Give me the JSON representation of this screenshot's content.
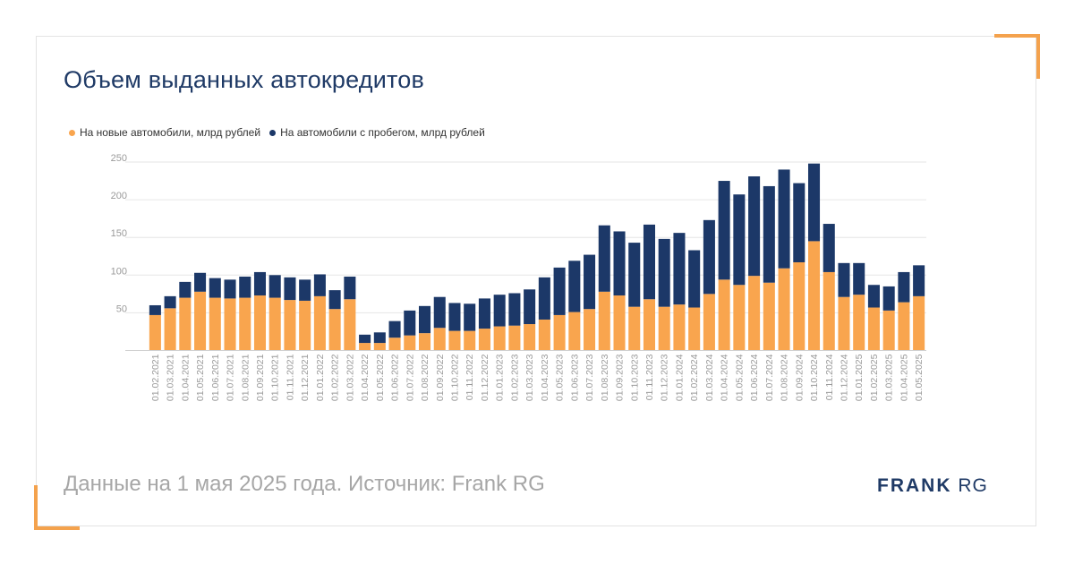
{
  "title": "Объем выданных автокредитов",
  "footer": "Данные на 1 мая 2025 года. Источник: Frank RG",
  "logo": {
    "bold": "FRANK",
    "light": "RG"
  },
  "colors": {
    "new": "#f9a54e",
    "used": "#1c3868",
    "grid": "#e6e6e6",
    "tick": "#9a9a9a",
    "accent": "#f4a24d"
  },
  "chart_data": {
    "type": "bar",
    "stacked": true,
    "title": "Объем выданных автокредитов",
    "ylim": [
      0,
      250
    ],
    "yticks": [
      50,
      100,
      150,
      200,
      250
    ],
    "grid": true,
    "legend_position": "top-left",
    "categories": [
      "01.02.2021",
      "01.03.2021",
      "01.04.2021",
      "01.05.2021",
      "01.06.2021",
      "01.07.2021",
      "01.08.2021",
      "01.09.2021",
      "01.10.2021",
      "01.11.2021",
      "01.12.2021",
      "01.01.2022",
      "01.02.2022",
      "01.03.2022",
      "01.04.2022",
      "01.05.2022",
      "01.06.2022",
      "01.07.2022",
      "01.08.2022",
      "01.09.2022",
      "01.10.2022",
      "01.11.2022",
      "01.12.2022",
      "01.01.2023",
      "01.02.2023",
      "01.03.2023",
      "01.04.2023",
      "01.05.2023",
      "01.06.2023",
      "01.07.2023",
      "01.08.2023",
      "01.09.2023",
      "01.10.2023",
      "01.11.2023",
      "01.12.2023",
      "01.01.2024",
      "01.02.2024",
      "01.03.2024",
      "01.04.2024",
      "01.05.2024",
      "01.06.2024",
      "01.07.2024",
      "01.08.2024",
      "01.09.2024",
      "01.10.2024",
      "01.11.2024",
      "01.12.2024",
      "01.01.2025",
      "01.02.2025",
      "01.03.2025",
      "01.04.2025",
      "01.05.2025"
    ],
    "series": [
      {
        "name": "На новые автомобили, млрд рублей",
        "color": "#f9a54e",
        "values": [
          47,
          56,
          70,
          78,
          70,
          69,
          70,
          73,
          70,
          67,
          66,
          72,
          55,
          68,
          10,
          10,
          17,
          20,
          23,
          30,
          26,
          26,
          29,
          32,
          33,
          35,
          41,
          47,
          51,
          55,
          78,
          73,
          58,
          68,
          58,
          61,
          57,
          75,
          94,
          87,
          99,
          90,
          109,
          117,
          145,
          104,
          71,
          74,
          57,
          53,
          64,
          72
        ]
      },
      {
        "name": "На автомобили с пробегом, млрд рублей",
        "color": "#1c3868",
        "values": [
          13,
          16,
          21,
          25,
          26,
          25,
          28,
          31,
          30,
          30,
          28,
          29,
          25,
          30,
          11,
          14,
          22,
          33,
          36,
          41,
          37,
          36,
          40,
          42,
          43,
          46,
          56,
          63,
          68,
          72,
          88,
          85,
          85,
          99,
          90,
          95,
          76,
          98,
          131,
          120,
          132,
          128,
          131,
          105,
          103,
          64,
          45,
          42,
          30,
          32,
          40,
          41
        ]
      }
    ]
  }
}
